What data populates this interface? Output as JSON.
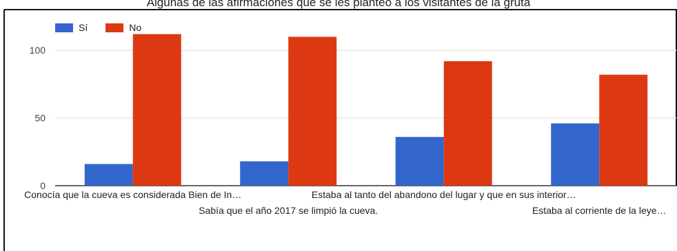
{
  "chart_data": {
    "type": "bar",
    "title": "Algunas de las afirmaciones que se les planteó a los visitantes de la gruta",
    "xlabel": "",
    "ylabel": "",
    "ylim": [
      0,
      125
    ],
    "yticks": [
      0,
      50,
      100
    ],
    "grid": true,
    "legend_position": "top-left",
    "categories": [
      "Conocía que la cueva es considerada Bien de In…",
      "Sabía que el año 2017 se limpió la cueva.",
      "Estaba al tanto del abandono del lugar y que en sus interior…",
      "Estaba al corriente de la leye…"
    ],
    "series": [
      {
        "name": "Sí",
        "color": "#3366cc",
        "values": [
          16,
          18,
          36,
          46
        ]
      },
      {
        "name": "No",
        "color": "#dc3912",
        "values": [
          112,
          110,
          92,
          82
        ]
      }
    ]
  }
}
